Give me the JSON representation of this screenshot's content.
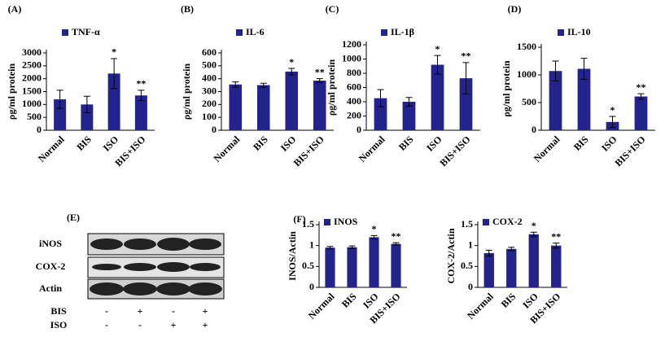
{
  "chart_data": [
    {
      "type": "bar",
      "panel": "(A)",
      "y_label": "ρg/ml protein",
      "categories": [
        "Normal",
        "BIS",
        "ISO",
        "BIS+ISO"
      ],
      "series": [
        {
          "name": "TNF-α",
          "color": "#23238e",
          "values": [
            1200,
            1000,
            2200,
            1350
          ],
          "errors": [
            350,
            320,
            580,
            200
          ]
        }
      ],
      "annotations": [
        null,
        null,
        "*",
        "**"
      ],
      "ylim": [
        0,
        3000
      ],
      "yticks": [
        0,
        500,
        1000,
        1500,
        2000,
        2500,
        3000
      ]
    },
    {
      "type": "bar",
      "panel": "(B)",
      "y_label": "ρg/ml protein",
      "categories": [
        "Normal",
        "BIS",
        "ISO",
        "BIS+ISO"
      ],
      "series": [
        {
          "name": "IL-6",
          "color": "#23238e",
          "values": [
            355,
            350,
            455,
            385
          ],
          "errors": [
            20,
            15,
            25,
            15
          ]
        }
      ],
      "annotations": [
        null,
        null,
        "*",
        "**"
      ],
      "ylim": [
        0,
        600
      ],
      "yticks": [
        0,
        100,
        200,
        300,
        400,
        500,
        600
      ]
    },
    {
      "type": "bar",
      "panel": "(C)",
      "y_label": "ρg/ml protein",
      "categories": [
        "Normal",
        "BIS",
        "ISO",
        "BIS+ISO"
      ],
      "series": [
        {
          "name": "IL-1β",
          "color": "#23238e",
          "values": [
            450,
            400,
            920,
            730
          ],
          "errors": [
            120,
            60,
            130,
            220
          ]
        }
      ],
      "annotations": [
        null,
        null,
        "*",
        "**"
      ],
      "ylim": [
        0,
        1200
      ],
      "yticks": [
        0,
        200,
        400,
        600,
        800,
        1000,
        1200
      ]
    },
    {
      "type": "bar",
      "panel": "(D)",
      "y_label": "ρg/ml protein",
      "categories": [
        "Normal",
        "BIS",
        "ISO",
        "BIS+ISO"
      ],
      "series": [
        {
          "name": "IL-10",
          "color": "#23238e",
          "values": [
            1070,
            1110,
            150,
            610
          ],
          "errors": [
            180,
            190,
            100,
            50
          ]
        }
      ],
      "annotations": [
        null,
        null,
        "*",
        "**"
      ],
      "ylim": [
        0,
        1500
      ],
      "yticks": [
        0,
        500,
        1000,
        1500
      ]
    },
    {
      "type": "bar",
      "panel": "(F)",
      "y_label": "INOS/Actin",
      "categories": [
        "Normal",
        "BIS",
        "ISO",
        "BIS+ISO"
      ],
      "series": [
        {
          "name": "INOS",
          "color": "#23238e",
          "values": [
            0.95,
            0.96,
            1.2,
            1.04
          ],
          "errors": [
            0.03,
            0.03,
            0.04,
            0.03
          ]
        }
      ],
      "annotations": [
        null,
        null,
        "*",
        "**"
      ],
      "ylim": [
        0,
        1.5
      ],
      "yticks": [
        0,
        0.5,
        1,
        1.5
      ]
    },
    {
      "type": "bar",
      "y_label": "COX-2/Actin",
      "categories": [
        "Normal",
        "BIS",
        "ISO",
        "BIS+ISO"
      ],
      "series": [
        {
          "name": "COX-2",
          "color": "#23238e",
          "values": [
            0.82,
            0.92,
            1.27,
            1.0
          ],
          "errors": [
            0.07,
            0.04,
            0.05,
            0.06
          ]
        }
      ],
      "annotations": [
        null,
        null,
        "*",
        "**"
      ],
      "ylim": [
        0,
        1.5
      ],
      "yticks": [
        0,
        0.5,
        1,
        1.5
      ]
    }
  ],
  "blot": {
    "label": "(E)",
    "rows": [
      "iNOS",
      "COX-2",
      "Actin"
    ],
    "treatments": [
      {
        "name": "BIS",
        "signs": [
          "-",
          "+",
          "-",
          "+"
        ]
      },
      {
        "name": "ISO",
        "signs": [
          "-",
          "-",
          "+",
          "+"
        ]
      }
    ]
  }
}
